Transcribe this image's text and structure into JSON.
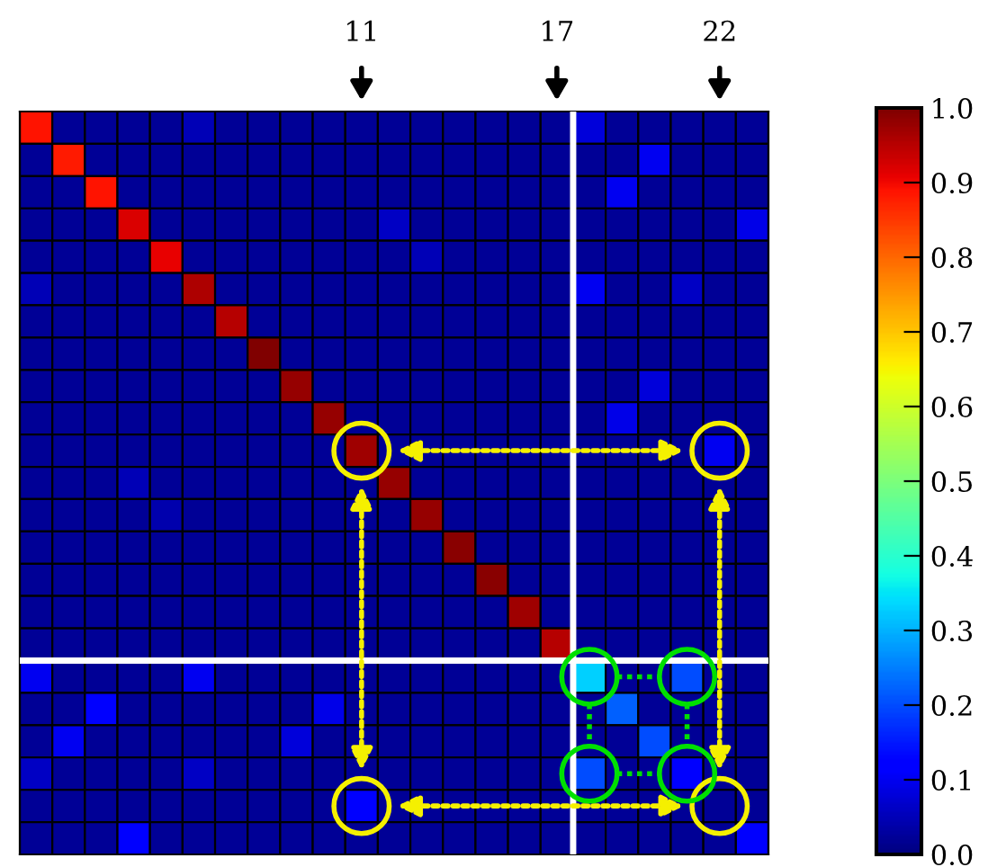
{
  "chart_data": {
    "type": "heatmap",
    "categories": [
      null,
      null,
      null,
      null,
      null,
      null,
      null,
      null,
      null,
      null,
      null,
      null,
      null,
      null,
      null,
      null,
      null,
      null,
      null,
      null,
      null,
      null,
      null
    ],
    "y_categories": [
      null,
      null,
      null,
      null,
      null,
      null,
      null,
      null,
      null,
      null,
      null,
      null,
      null,
      null,
      null,
      null,
      null,
      null,
      null,
      null,
      null,
      null,
      null
    ],
    "cells": [
      [
        0.89,
        0.02,
        0.02,
        0.02,
        0.02,
        0.05,
        0.02,
        0.02,
        0.02,
        0.02,
        0.02,
        0.02,
        0.02,
        0.02,
        0.02,
        0.02,
        0.02,
        0.08,
        0.02,
        0.02,
        0.02,
        0.02,
        0.02
      ],
      [
        0.02,
        0.88,
        0.02,
        0.02,
        0.02,
        0.02,
        0.02,
        0.02,
        0.02,
        0.02,
        0.02,
        0.02,
        0.02,
        0.02,
        0.02,
        0.02,
        0.02,
        0.02,
        0.02,
        0.1,
        0.02,
        0.02,
        0.02
      ],
      [
        0.02,
        0.02,
        0.89,
        0.02,
        0.02,
        0.02,
        0.02,
        0.02,
        0.02,
        0.02,
        0.02,
        0.02,
        0.02,
        0.02,
        0.02,
        0.02,
        0.02,
        0.02,
        0.1,
        0.02,
        0.02,
        0.02,
        0.02
      ],
      [
        0.02,
        0.02,
        0.02,
        0.92,
        0.02,
        0.02,
        0.02,
        0.02,
        0.02,
        0.02,
        0.02,
        0.06,
        0.02,
        0.02,
        0.02,
        0.02,
        0.02,
        0.02,
        0.02,
        0.02,
        0.02,
        0.02,
        0.09
      ],
      [
        0.02,
        0.02,
        0.02,
        0.02,
        0.91,
        0.02,
        0.02,
        0.02,
        0.02,
        0.02,
        0.02,
        0.02,
        0.05,
        0.02,
        0.02,
        0.02,
        0.02,
        0.02,
        0.02,
        0.02,
        0.02,
        0.02,
        0.02
      ],
      [
        0.05,
        0.02,
        0.02,
        0.02,
        0.02,
        0.96,
        0.02,
        0.02,
        0.02,
        0.02,
        0.02,
        0.02,
        0.02,
        0.02,
        0.02,
        0.02,
        0.02,
        0.1,
        0.02,
        0.02,
        0.06,
        0.02,
        0.02
      ],
      [
        0.02,
        0.02,
        0.02,
        0.02,
        0.02,
        0.02,
        0.95,
        0.02,
        0.02,
        0.02,
        0.02,
        0.02,
        0.02,
        0.02,
        0.02,
        0.02,
        0.02,
        0.02,
        0.02,
        0.02,
        0.02,
        0.02,
        0.02
      ],
      [
        0.02,
        0.02,
        0.02,
        0.02,
        0.02,
        0.02,
        0.02,
        1.0,
        0.02,
        0.02,
        0.02,
        0.02,
        0.02,
        0.02,
        0.02,
        0.02,
        0.02,
        0.02,
        0.02,
        0.02,
        0.02,
        0.02,
        0.02
      ],
      [
        0.02,
        0.02,
        0.02,
        0.02,
        0.02,
        0.02,
        0.02,
        0.02,
        0.98,
        0.02,
        0.02,
        0.02,
        0.02,
        0.02,
        0.02,
        0.02,
        0.02,
        0.02,
        0.02,
        0.08,
        0.02,
        0.02,
        0.02
      ],
      [
        0.02,
        0.02,
        0.02,
        0.02,
        0.02,
        0.02,
        0.02,
        0.02,
        0.02,
        0.98,
        0.02,
        0.02,
        0.02,
        0.02,
        0.02,
        0.02,
        0.02,
        0.02,
        0.09,
        0.02,
        0.02,
        0.02,
        0.02
      ],
      [
        0.02,
        0.02,
        0.02,
        0.02,
        0.02,
        0.02,
        0.02,
        0.02,
        0.02,
        0.02,
        0.97,
        0.02,
        0.02,
        0.02,
        0.02,
        0.02,
        0.02,
        0.02,
        0.02,
        0.02,
        0.02,
        0.1,
        0.02
      ],
      [
        0.02,
        0.02,
        0.02,
        0.05,
        0.02,
        0.02,
        0.02,
        0.02,
        0.02,
        0.02,
        0.02,
        0.98,
        0.02,
        0.02,
        0.02,
        0.02,
        0.02,
        0.02,
        0.02,
        0.02,
        0.02,
        0.02,
        0.02
      ],
      [
        0.02,
        0.02,
        0.02,
        0.02,
        0.04,
        0.02,
        0.02,
        0.02,
        0.02,
        0.02,
        0.02,
        0.02,
        0.98,
        0.02,
        0.02,
        0.02,
        0.02,
        0.02,
        0.02,
        0.02,
        0.02,
        0.02,
        0.02
      ],
      [
        0.02,
        0.02,
        0.02,
        0.02,
        0.02,
        0.02,
        0.02,
        0.02,
        0.02,
        0.02,
        0.02,
        0.02,
        0.02,
        0.99,
        0.02,
        0.02,
        0.02,
        0.02,
        0.02,
        0.02,
        0.02,
        0.02,
        0.02
      ],
      [
        0.02,
        0.02,
        0.02,
        0.02,
        0.02,
        0.02,
        0.02,
        0.02,
        0.02,
        0.02,
        0.02,
        0.02,
        0.02,
        0.02,
        0.99,
        0.02,
        0.02,
        0.02,
        0.02,
        0.02,
        0.02,
        0.02,
        0.02
      ],
      [
        0.02,
        0.02,
        0.02,
        0.02,
        0.02,
        0.02,
        0.02,
        0.02,
        0.02,
        0.02,
        0.02,
        0.02,
        0.02,
        0.02,
        0.02,
        0.97,
        0.02,
        0.02,
        0.02,
        0.02,
        0.02,
        0.02,
        0.02
      ],
      [
        0.02,
        0.02,
        0.02,
        0.02,
        0.02,
        0.02,
        0.02,
        0.02,
        0.02,
        0.02,
        0.02,
        0.02,
        0.02,
        0.02,
        0.02,
        0.02,
        0.95,
        0.02,
        0.02,
        0.02,
        0.02,
        0.02,
        0.02
      ],
      [
        0.1,
        0.02,
        0.02,
        0.02,
        0.02,
        0.1,
        0.02,
        0.02,
        0.02,
        0.02,
        0.02,
        0.02,
        0.02,
        0.02,
        0.02,
        0.02,
        0.02,
        0.33,
        0.02,
        0.02,
        0.2,
        0.02,
        0.02
      ],
      [
        0.02,
        0.02,
        0.11,
        0.02,
        0.02,
        0.02,
        0.02,
        0.02,
        0.02,
        0.09,
        0.02,
        0.02,
        0.02,
        0.02,
        0.02,
        0.02,
        0.02,
        0.02,
        0.22,
        0.02,
        0.02,
        0.02,
        0.02
      ],
      [
        0.02,
        0.1,
        0.02,
        0.02,
        0.02,
        0.02,
        0.02,
        0.02,
        0.08,
        0.02,
        0.02,
        0.02,
        0.02,
        0.02,
        0.02,
        0.02,
        0.02,
        0.02,
        0.02,
        0.2,
        0.02,
        0.02,
        0.02
      ],
      [
        0.06,
        0.02,
        0.02,
        0.02,
        0.02,
        0.06,
        0.02,
        0.02,
        0.02,
        0.02,
        0.02,
        0.02,
        0.02,
        0.02,
        0.02,
        0.02,
        0.02,
        0.2,
        0.02,
        0.02,
        0.12,
        0.02,
        0.02
      ],
      [
        0.02,
        0.02,
        0.02,
        0.02,
        0.02,
        0.02,
        0.02,
        0.02,
        0.02,
        0.02,
        0.12,
        0.02,
        0.02,
        0.02,
        0.02,
        0.02,
        0.02,
        0.02,
        0.02,
        0.02,
        0.02,
        0.02,
        0.02
      ],
      [
        0.02,
        0.02,
        0.02,
        0.12,
        0.02,
        0.02,
        0.02,
        0.02,
        0.02,
        0.02,
        0.02,
        0.02,
        0.02,
        0.02,
        0.02,
        0.02,
        0.02,
        0.02,
        0.02,
        0.02,
        0.02,
        0.02,
        0.12
      ]
    ],
    "clim": [
      0,
      1
    ],
    "cticks": [
      {
        "value": 0,
        "label": "0.0"
      },
      {
        "value": 0.1,
        "label": "0.1"
      },
      {
        "value": 0.2,
        "label": "0.2"
      },
      {
        "value": 0.3,
        "label": "0.3"
      },
      {
        "value": 0.4,
        "label": "0.4"
      },
      {
        "value": 0.5,
        "label": "0.5"
      },
      {
        "value": 0.6,
        "label": "0.6"
      },
      {
        "value": 0.7,
        "label": "0.7"
      },
      {
        "value": 0.8,
        "label": "0.8"
      },
      {
        "value": 0.9,
        "label": "0.9"
      },
      {
        "value": 1,
        "label": "1.0"
      }
    ],
    "x2lim": [
      0.5,
      23.5
    ],
    "x2ticks": [
      11,
      17,
      22
    ]
  }
}
